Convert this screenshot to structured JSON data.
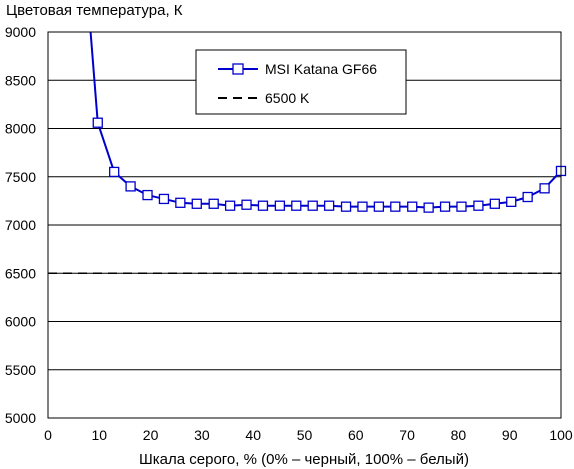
{
  "chart_data": {
    "type": "line",
    "ylabel": "Цветовая температура, К",
    "xlabel": "Шкала серого, % (0% – черный, 100% – белый)",
    "xlim": [
      0,
      100
    ],
    "ylim": [
      5000,
      9000
    ],
    "xticks": [
      0,
      10,
      20,
      30,
      40,
      50,
      60,
      70,
      80,
      90,
      100
    ],
    "yticks": [
      5000,
      5500,
      6000,
      6500,
      7000,
      7500,
      8000,
      8500,
      9000
    ],
    "grid": "horizontal",
    "legend_position": "top-center",
    "series": [
      {
        "name": "MSI Katana GF66",
        "color": "#0000cc",
        "marker": "square-open",
        "line_start": [
          8.3,
          9000
        ],
        "x": [
          9.7,
          12.9,
          16.1,
          19.4,
          22.6,
          25.8,
          29.0,
          32.3,
          35.5,
          38.7,
          41.9,
          45.2,
          48.4,
          51.6,
          54.8,
          58.1,
          61.3,
          64.5,
          67.7,
          71.0,
          74.2,
          77.4,
          80.6,
          83.9,
          87.1,
          90.3,
          93.5,
          96.8,
          100
        ],
        "values": [
          8060,
          7550,
          7400,
          7310,
          7270,
          7230,
          7220,
          7220,
          7200,
          7210,
          7200,
          7200,
          7200,
          7200,
          7200,
          7190,
          7190,
          7190,
          7190,
          7190,
          7180,
          7190,
          7190,
          7200,
          7220,
          7240,
          7290,
          7380,
          7560
        ]
      },
      {
        "name": "6500 K",
        "color": "#000000",
        "style": "dashed",
        "x": [
          0,
          100
        ],
        "values": [
          6500,
          6500
        ]
      }
    ]
  }
}
